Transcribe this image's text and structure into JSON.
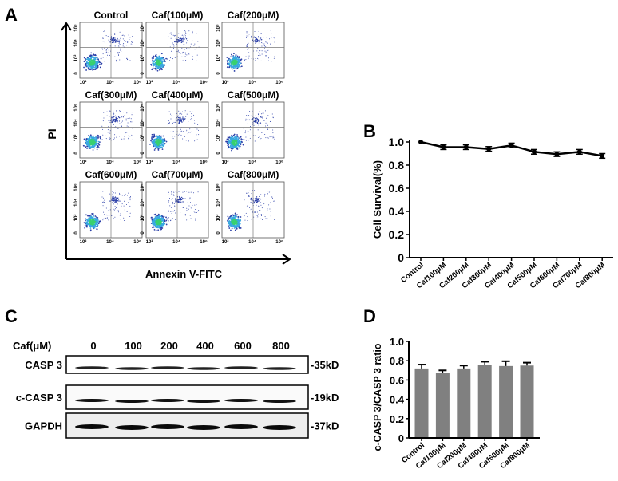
{
  "panels": {
    "A": {
      "label": "A",
      "y_axis_label": "PI",
      "x_axis_label": "Annexin V-FITC",
      "plot_titles": [
        "Control",
        "Caf(100μM)",
        "Caf(200μM)",
        "Caf(300μM)",
        "Caf(400μM)",
        "Caf(500μM)",
        "Caf(600μM)",
        "Caf(700μM)",
        "Caf(800μM)"
      ],
      "y_ticks": [
        "10⁶",
        "10⁴",
        "10²",
        "0"
      ],
      "x_ticks": [
        "10²",
        "10⁴",
        "10⁶"
      ],
      "scatter_colors": [
        "#2b3fa8",
        "#38a8e0",
        "#38d070"
      ]
    },
    "B": {
      "label": "B"
    },
    "C": {
      "label": "C",
      "dose_header": "Caf(μM)",
      "lanes": [
        "0",
        "100",
        "200",
        "400",
        "600",
        "800"
      ],
      "rows": [
        {
          "name": "CASP 3",
          "size": "-35kD"
        },
        {
          "name": "c-CASP 3",
          "size": "-19kD"
        },
        {
          "name": "GAPDH",
          "size": "-37kD"
        }
      ]
    },
    "D": {
      "label": "D"
    }
  },
  "chart_data": [
    {
      "panel": "B",
      "type": "line",
      "ylabel": "Cell Survival(%)",
      "xlabel": "",
      "categories": [
        "Control",
        "Caf100μM",
        "Caf200μM",
        "Caf300μM",
        "Caf400μM",
        "Caf500μM",
        "Caf600μM",
        "Caf700μM",
        "Caf800μM"
      ],
      "values": [
        1.0,
        0.955,
        0.955,
        0.94,
        0.97,
        0.915,
        0.895,
        0.915,
        0.88
      ],
      "errors": [
        0.0,
        0.02,
        0.02,
        0.02,
        0.02,
        0.02,
        0.02,
        0.02,
        0.02
      ],
      "ylim": [
        0,
        1.0
      ],
      "yticks": [
        "0",
        "0.2",
        "0.4",
        "0.6",
        "0.8",
        "1.0"
      ],
      "grid": false,
      "color": "#000000"
    },
    {
      "panel": "D",
      "type": "bar",
      "ylabel": "c-CASP 3/CASP 3 ratio",
      "xlabel": "",
      "categories": [
        "Control",
        "Caf100μM",
        "Caf200μM",
        "Caf400μM",
        "Caf600μM",
        "Caf800μM"
      ],
      "values": [
        0.72,
        0.67,
        0.72,
        0.76,
        0.745,
        0.75
      ],
      "errors": [
        0.04,
        0.03,
        0.03,
        0.03,
        0.05,
        0.03
      ],
      "ylim": [
        0,
        1.0
      ],
      "yticks": [
        "0",
        "0.2",
        "0.4",
        "0.6",
        "0.8",
        "1.0"
      ],
      "grid": false,
      "color": "#808080"
    }
  ]
}
